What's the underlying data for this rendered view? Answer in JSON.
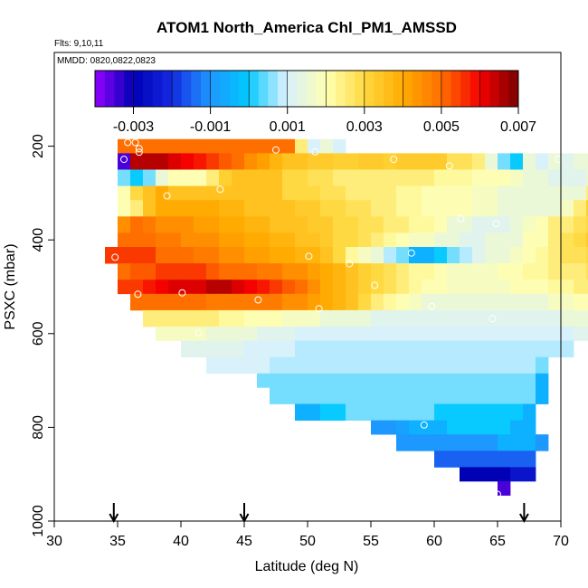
{
  "chart_data": {
    "type": "heatmap",
    "title": "ATOM1 North_America Chl_PM1_AMSSD",
    "flights_label": "Flts: 9,10,11",
    "dates_label": "MMDD: 0820,0822,0823",
    "xlabel": "Latitude (deg N)",
    "ylabel": "PSXC (mbar)",
    "xlim": [
      30,
      70
    ],
    "ylim": [
      1000,
      0
    ],
    "x_ticks": [
      30,
      35,
      40,
      45,
      50,
      55,
      60,
      65,
      70
    ],
    "y_ticks": [
      200,
      400,
      600,
      800,
      1000
    ],
    "colorbar": {
      "min": -0.004,
      "max": 0.007,
      "tick_values": [
        -0.003,
        -0.001,
        0.001,
        0.003,
        0.005,
        0.007
      ],
      "tick_labels": [
        "-0.003",
        "-0.001",
        "0.001",
        "0.003",
        "0.005",
        "0.007"
      ]
    },
    "flight_markers_latitude": [
      34.7,
      45.0,
      67.1
    ],
    "levels": [
      {
        "pressure": 200,
        "lat_start": 35,
        "values": [
          0.005,
          0.005,
          0.005,
          0.005,
          0.005,
          0.005,
          0.005,
          0.005,
          0.005,
          0.005,
          0.005,
          0.005,
          0.005,
          0.005,
          0.0025,
          0.001,
          0.0015,
          0.001
        ]
      },
      {
        "pressure": 230,
        "lat_start": 35,
        "values": [
          -0.0035,
          0.0065,
          0.0065,
          0.0065,
          0.0062,
          0.006,
          0.0058,
          0.0055,
          0.0052,
          0.005,
          0.0045,
          0.0042,
          0.0038,
          0.0035,
          0.0035,
          0.0033,
          0.0033,
          0.0032,
          0.0032,
          0.0033,
          0.0033,
          0.0032,
          0.0033,
          0.0033,
          0.0033,
          0.0033,
          0.0028,
          0.0028,
          0.0025,
          0.0015,
          0.0005,
          0.0,
          0.0015,
          0.001,
          0.0015,
          0.0012,
          0.0015,
          0.0015,
          0.0025,
          0.002,
          0.0045,
          0.0055,
          0.006,
          0.0065,
          0.0065
        ]
      },
      {
        "pressure": 270,
        "lat_start": 35,
        "values": [
          0.0005,
          0.0,
          0.0005,
          0.0015,
          0.002,
          0.002,
          0.002,
          0.0025,
          0.0032,
          0.0035,
          0.0035,
          0.0035,
          0.0035,
          0.003,
          0.003,
          0.0028,
          0.0028,
          0.0025,
          0.0025,
          0.0025,
          0.0025,
          0.0025,
          0.0025,
          0.0025,
          0.0025,
          0.0022,
          0.0022,
          0.0022,
          0.002,
          0.002,
          0.002,
          0.0018,
          0.0015,
          0.0015,
          0.0012,
          0.0012,
          0.0012,
          0.0015,
          0.0018,
          0.003,
          0.0045,
          0.0045,
          0.0045,
          0.0045
        ]
      },
      {
        "pressure": 300,
        "lat_start": 35,
        "values": [
          0.002,
          0.003,
          0.0035,
          0.004,
          0.0035,
          0.0035,
          0.0035,
          0.0035,
          0.0035,
          0.0035,
          0.0035,
          0.0035,
          0.0035,
          0.003,
          0.003,
          0.003,
          0.0028,
          0.0028,
          0.0025,
          0.0025,
          0.0025,
          0.0025,
          0.0022,
          0.0022,
          0.002,
          0.002,
          0.002,
          0.002,
          0.0018,
          0.0018,
          0.0015,
          0.0015,
          0.0015,
          0.0015,
          0.0015,
          0.0015,
          0.0015,
          0.0025,
          0.0033,
          0.0035,
          0.004,
          0.004,
          0.004
        ]
      },
      {
        "pressure": 330,
        "lat_start": 35,
        "values": [
          0.002,
          0.0025,
          0.0035,
          0.004,
          0.004,
          0.004,
          0.004,
          0.004,
          0.0038,
          0.0038,
          0.0035,
          0.0035,
          0.0035,
          0.0035,
          0.0033,
          0.0033,
          0.003,
          0.003,
          0.0028,
          0.0028,
          0.0025,
          0.0025,
          0.0022,
          0.0022,
          0.002,
          0.002,
          0.002,
          0.002,
          0.0018,
          0.0018,
          0.0015,
          0.0015,
          0.0015,
          0.0015,
          0.0015,
          0.0018,
          0.0025,
          0.0032,
          0.0033,
          0.0035,
          0.0035,
          0.0038,
          0.0038
        ]
      },
      {
        "pressure": 370,
        "lat_start": 35,
        "values": [
          0.0045,
          0.005,
          0.0048,
          0.0045,
          0.0045,
          0.0045,
          0.0042,
          0.0042,
          0.004,
          0.004,
          0.0038,
          0.0038,
          0.0035,
          0.0035,
          0.0035,
          0.0033,
          0.0033,
          0.003,
          0.003,
          0.0028,
          0.0028,
          0.0025,
          0.0025,
          0.0022,
          0.0022,
          0.002,
          0.0015,
          0.0015,
          0.0012,
          0.0012,
          0.0012,
          0.0015,
          0.0018,
          0.002,
          0.0025,
          0.0025,
          0.0028,
          0.003,
          0.0033,
          0.0035,
          0.0035
        ]
      },
      {
        "pressure": 400,
        "lat_start": 35,
        "values": [
          0.005,
          0.005,
          0.005,
          0.0048,
          0.0048,
          0.0045,
          0.0045,
          0.0045,
          0.0042,
          0.0042,
          0.004,
          0.004,
          0.0038,
          0.0038,
          0.0035,
          0.0035,
          0.0033,
          0.003,
          0.003,
          0.0028,
          0.0025,
          0.0022,
          0.002,
          0.0018,
          0.0018,
          0.0015,
          0.0015,
          0.0012,
          0.0012,
          0.0015,
          0.0015,
          0.0015,
          0.002,
          0.002,
          0.0025,
          0.0028,
          0.003,
          0.0033,
          0.0035
        ]
      },
      {
        "pressure": 430,
        "lat_start": 34,
        "values": [
          0.0055,
          0.0055,
          0.0055,
          0.0055,
          0.005,
          0.005,
          0.005,
          0.0048,
          0.0048,
          0.0045,
          0.0045,
          0.0042,
          0.0042,
          0.004,
          0.004,
          0.0038,
          0.0038,
          0.0035,
          0.003,
          0.0022,
          0.0018,
          0.0015,
          0.0008,
          0.0005,
          -0.0005,
          -0.0005,
          0.0,
          0.0005,
          0.0008,
          0.0012,
          0.0015,
          0.0015,
          0.0018,
          0.002,
          0.0022,
          0.0025,
          0.0028,
          0.0028,
          0.003,
          0.003,
          0.003
        ]
      },
      {
        "pressure": 470,
        "lat_start": 35,
        "values": [
          0.005,
          0.0052,
          0.0052,
          0.0055,
          0.0055,
          0.0055,
          0.0055,
          0.0052,
          0.005,
          0.005,
          0.005,
          0.0048,
          0.0048,
          0.0045,
          0.0045,
          0.0042,
          0.004,
          0.0038,
          0.0035,
          0.0032,
          0.003,
          0.0028,
          0.0025,
          0.0022,
          0.0022,
          0.002,
          0.0018,
          0.0018,
          0.0018,
          0.0018,
          0.002,
          0.002,
          0.0022,
          0.0022,
          0.0025,
          0.0025,
          0.0025,
          0.0028,
          0.003,
          0.003
        ]
      },
      {
        "pressure": 500,
        "lat_start": 35,
        "values": [
          0.0055,
          0.0055,
          0.0058,
          0.006,
          0.0062,
          0.0062,
          0.0062,
          0.0065,
          0.0065,
          0.0062,
          0.006,
          0.0058,
          0.0055,
          0.0052,
          0.005,
          0.0045,
          0.004,
          0.0038,
          0.0035,
          0.0032,
          0.003,
          0.0028,
          0.0025,
          0.0022,
          0.002,
          0.002,
          0.0018,
          0.0018,
          0.0018,
          0.0018,
          0.0018,
          0.002,
          0.002,
          0.002,
          0.0022,
          0.0022,
          0.0025,
          0.0025,
          0.0028,
          0.003
        ]
      },
      {
        "pressure": 530,
        "lat_start": 36,
        "values": [
          0.005,
          0.005,
          0.005,
          0.005,
          0.005,
          0.005,
          0.0048,
          0.0048,
          0.0048,
          0.0048,
          0.0048,
          0.0048,
          0.0045,
          0.0045,
          0.0042,
          0.004,
          0.0038,
          0.0035,
          0.003,
          0.0025,
          0.0022,
          0.002,
          0.0018,
          0.0015,
          0.0015,
          0.0015,
          0.0015,
          0.0015,
          0.0015,
          0.0015,
          0.0015,
          0.0015,
          0.0015,
          0.0018,
          0.0018,
          0.002,
          0.002,
          0.0022,
          0.0022,
          0.0025
        ]
      },
      {
        "pressure": 570,
        "lat_start": 37,
        "values": [
          0.0025,
          0.0025,
          0.0025,
          0.0025,
          0.0025,
          0.0025,
          0.0022,
          0.0022,
          0.002,
          0.002,
          0.002,
          0.0018,
          0.0018,
          0.0018,
          0.0015,
          0.0015,
          0.0015,
          0.0015,
          0.0012,
          0.0012,
          0.0012,
          0.0012,
          0.0012,
          0.0012,
          0.0012,
          0.0012,
          0.0012,
          0.0012,
          0.0012,
          0.0012,
          0.0012,
          0.0012,
          0.0012,
          0.0015,
          0.0015,
          0.0015,
          0.0018,
          0.0018
        ]
      },
      {
        "pressure": 600,
        "lat_start": 38,
        "values": [
          0.0018,
          0.0018,
          0.0018,
          0.0018,
          0.0015,
          0.0015,
          0.0015,
          0.0015,
          0.0012,
          0.0012,
          0.0012,
          0.001,
          0.001,
          0.001,
          0.001,
          0.001,
          0.001,
          0.001,
          0.001,
          0.001,
          0.001,
          0.001,
          0.001,
          0.001,
          0.001,
          0.001,
          0.001,
          0.001,
          0.001,
          0.001,
          0.001,
          0.001,
          0.001,
          0.0012,
          0.0012,
          0.0012
        ]
      },
      {
        "pressure": 630,
        "lat_start": 40,
        "values": [
          0.0012,
          0.0012,
          0.0012,
          0.0012,
          0.0012,
          0.001,
          0.001,
          0.001,
          0.001,
          0.0008,
          0.0008,
          0.0008,
          0.0008,
          0.0008,
          0.0008,
          0.0008,
          0.0008,
          0.0008,
          0.0008,
          0.0008,
          0.0008,
          0.0008,
          0.0008,
          0.0008,
          0.0008,
          0.0008,
          0.0008,
          0.0008,
          0.0008,
          0.0008,
          0.0008
        ]
      },
      {
        "pressure": 670,
        "lat_start": 42,
        "values": [
          0.001,
          0.001,
          0.001,
          0.001,
          0.001,
          0.0008,
          0.0008,
          0.0008,
          0.0008,
          0.0008,
          0.0008,
          0.0008,
          0.0008,
          0.0008,
          0.0008,
          0.0008,
          0.0008,
          0.0008,
          0.0008,
          0.0008,
          0.0008,
          0.0008,
          0.0008,
          0.0008,
          0.0008,
          0.0008,
          0.0005
        ]
      },
      {
        "pressure": 700,
        "lat_start": 46,
        "values": [
          0.0005,
          0.0005,
          0.0005,
          0.0005,
          0.0005,
          0.0005,
          0.0005,
          0.0005,
          0.0005,
          0.0005,
          0.0005,
          0.0005,
          0.0005,
          0.0005,
          0.0005,
          0.0005,
          0.0005,
          0.0005,
          0.0005,
          0.0005,
          0.0005,
          0.0005,
          -0.0005
        ]
      },
      {
        "pressure": 730,
        "lat_start": 47,
        "values": [
          0.0005,
          0.0005,
          0.0005,
          0.0005,
          0.0005,
          0.0005,
          0.0005,
          0.0005,
          0.0005,
          0.0005,
          0.0005,
          0.0005,
          0.0005,
          0.0005,
          0.0005,
          0.0005,
          0.0005,
          0.0005,
          0.0005,
          0.0005,
          0.0005,
          -0.0005
        ]
      },
      {
        "pressure": 770,
        "lat_start": 49,
        "values": [
          -0.0005,
          -0.0005,
          0.0,
          0.0,
          0.0005,
          0.0005,
          0.0005,
          0.0005,
          0.0005,
          0.0005,
          0.0005,
          0.0,
          0.0,
          0.0,
          0.0,
          0.0,
          0.0,
          0.0,
          -0.0005
        ]
      },
      {
        "pressure": 800,
        "lat_start": 55,
        "values": [
          -0.001,
          -0.001,
          -0.0008,
          -0.0005,
          -0.0005,
          -0.0005,
          0.0,
          0.0,
          0.0,
          0.0,
          0.0,
          -0.0005,
          -0.0005
        ]
      },
      {
        "pressure": 830,
        "lat_start": 57,
        "values": [
          -0.001,
          -0.001,
          -0.001,
          -0.001,
          -0.001,
          -0.001,
          -0.001,
          -0.001,
          -0.0005,
          -0.0005,
          -0.0005,
          -0.001
        ]
      },
      {
        "pressure": 870,
        "lat_start": 60,
        "values": [
          -0.0015,
          -0.0015,
          -0.0015,
          -0.0015,
          -0.0015,
          -0.0015,
          -0.0015,
          -0.0015
        ]
      },
      {
        "pressure": 900,
        "lat_start": 62,
        "values": [
          -0.003,
          -0.003,
          -0.003,
          -0.003,
          -0.0025,
          -0.0025
        ]
      },
      {
        "pressure": 930,
        "lat_start": 65,
        "values": [
          -0.0035
        ]
      }
    ],
    "points": [
      {
        "lat": 35.8,
        "p": 192
      },
      {
        "lat": 36.4,
        "p": 192
      },
      {
        "lat": 36.7,
        "p": 205
      },
      {
        "lat": 36.7,
        "p": 213
      },
      {
        "lat": 35.5,
        "p": 228
      },
      {
        "lat": 47.5,
        "p": 208
      },
      {
        "lat": 50.6,
        "p": 212
      },
      {
        "lat": 56.8,
        "p": 228
      },
      {
        "lat": 61.2,
        "p": 242
      },
      {
        "lat": 69.8,
        "p": 228
      },
      {
        "lat": 43.1,
        "p": 292
      },
      {
        "lat": 38.9,
        "p": 306
      },
      {
        "lat": 62.1,
        "p": 355
      },
      {
        "lat": 64.9,
        "p": 365
      },
      {
        "lat": 34.8,
        "p": 437
      },
      {
        "lat": 50.1,
        "p": 435
      },
      {
        "lat": 53.3,
        "p": 451
      },
      {
        "lat": 58.2,
        "p": 428
      },
      {
        "lat": 55.3,
        "p": 497
      },
      {
        "lat": 36.6,
        "p": 516
      },
      {
        "lat": 40.1,
        "p": 513
      },
      {
        "lat": 46.1,
        "p": 528
      },
      {
        "lat": 50.9,
        "p": 547
      },
      {
        "lat": 59.8,
        "p": 542
      },
      {
        "lat": 64.6,
        "p": 568
      },
      {
        "lat": 41.4,
        "p": 598
      },
      {
        "lat": 59.2,
        "p": 795
      },
      {
        "lat": 65.0,
        "p": 943
      }
    ]
  }
}
